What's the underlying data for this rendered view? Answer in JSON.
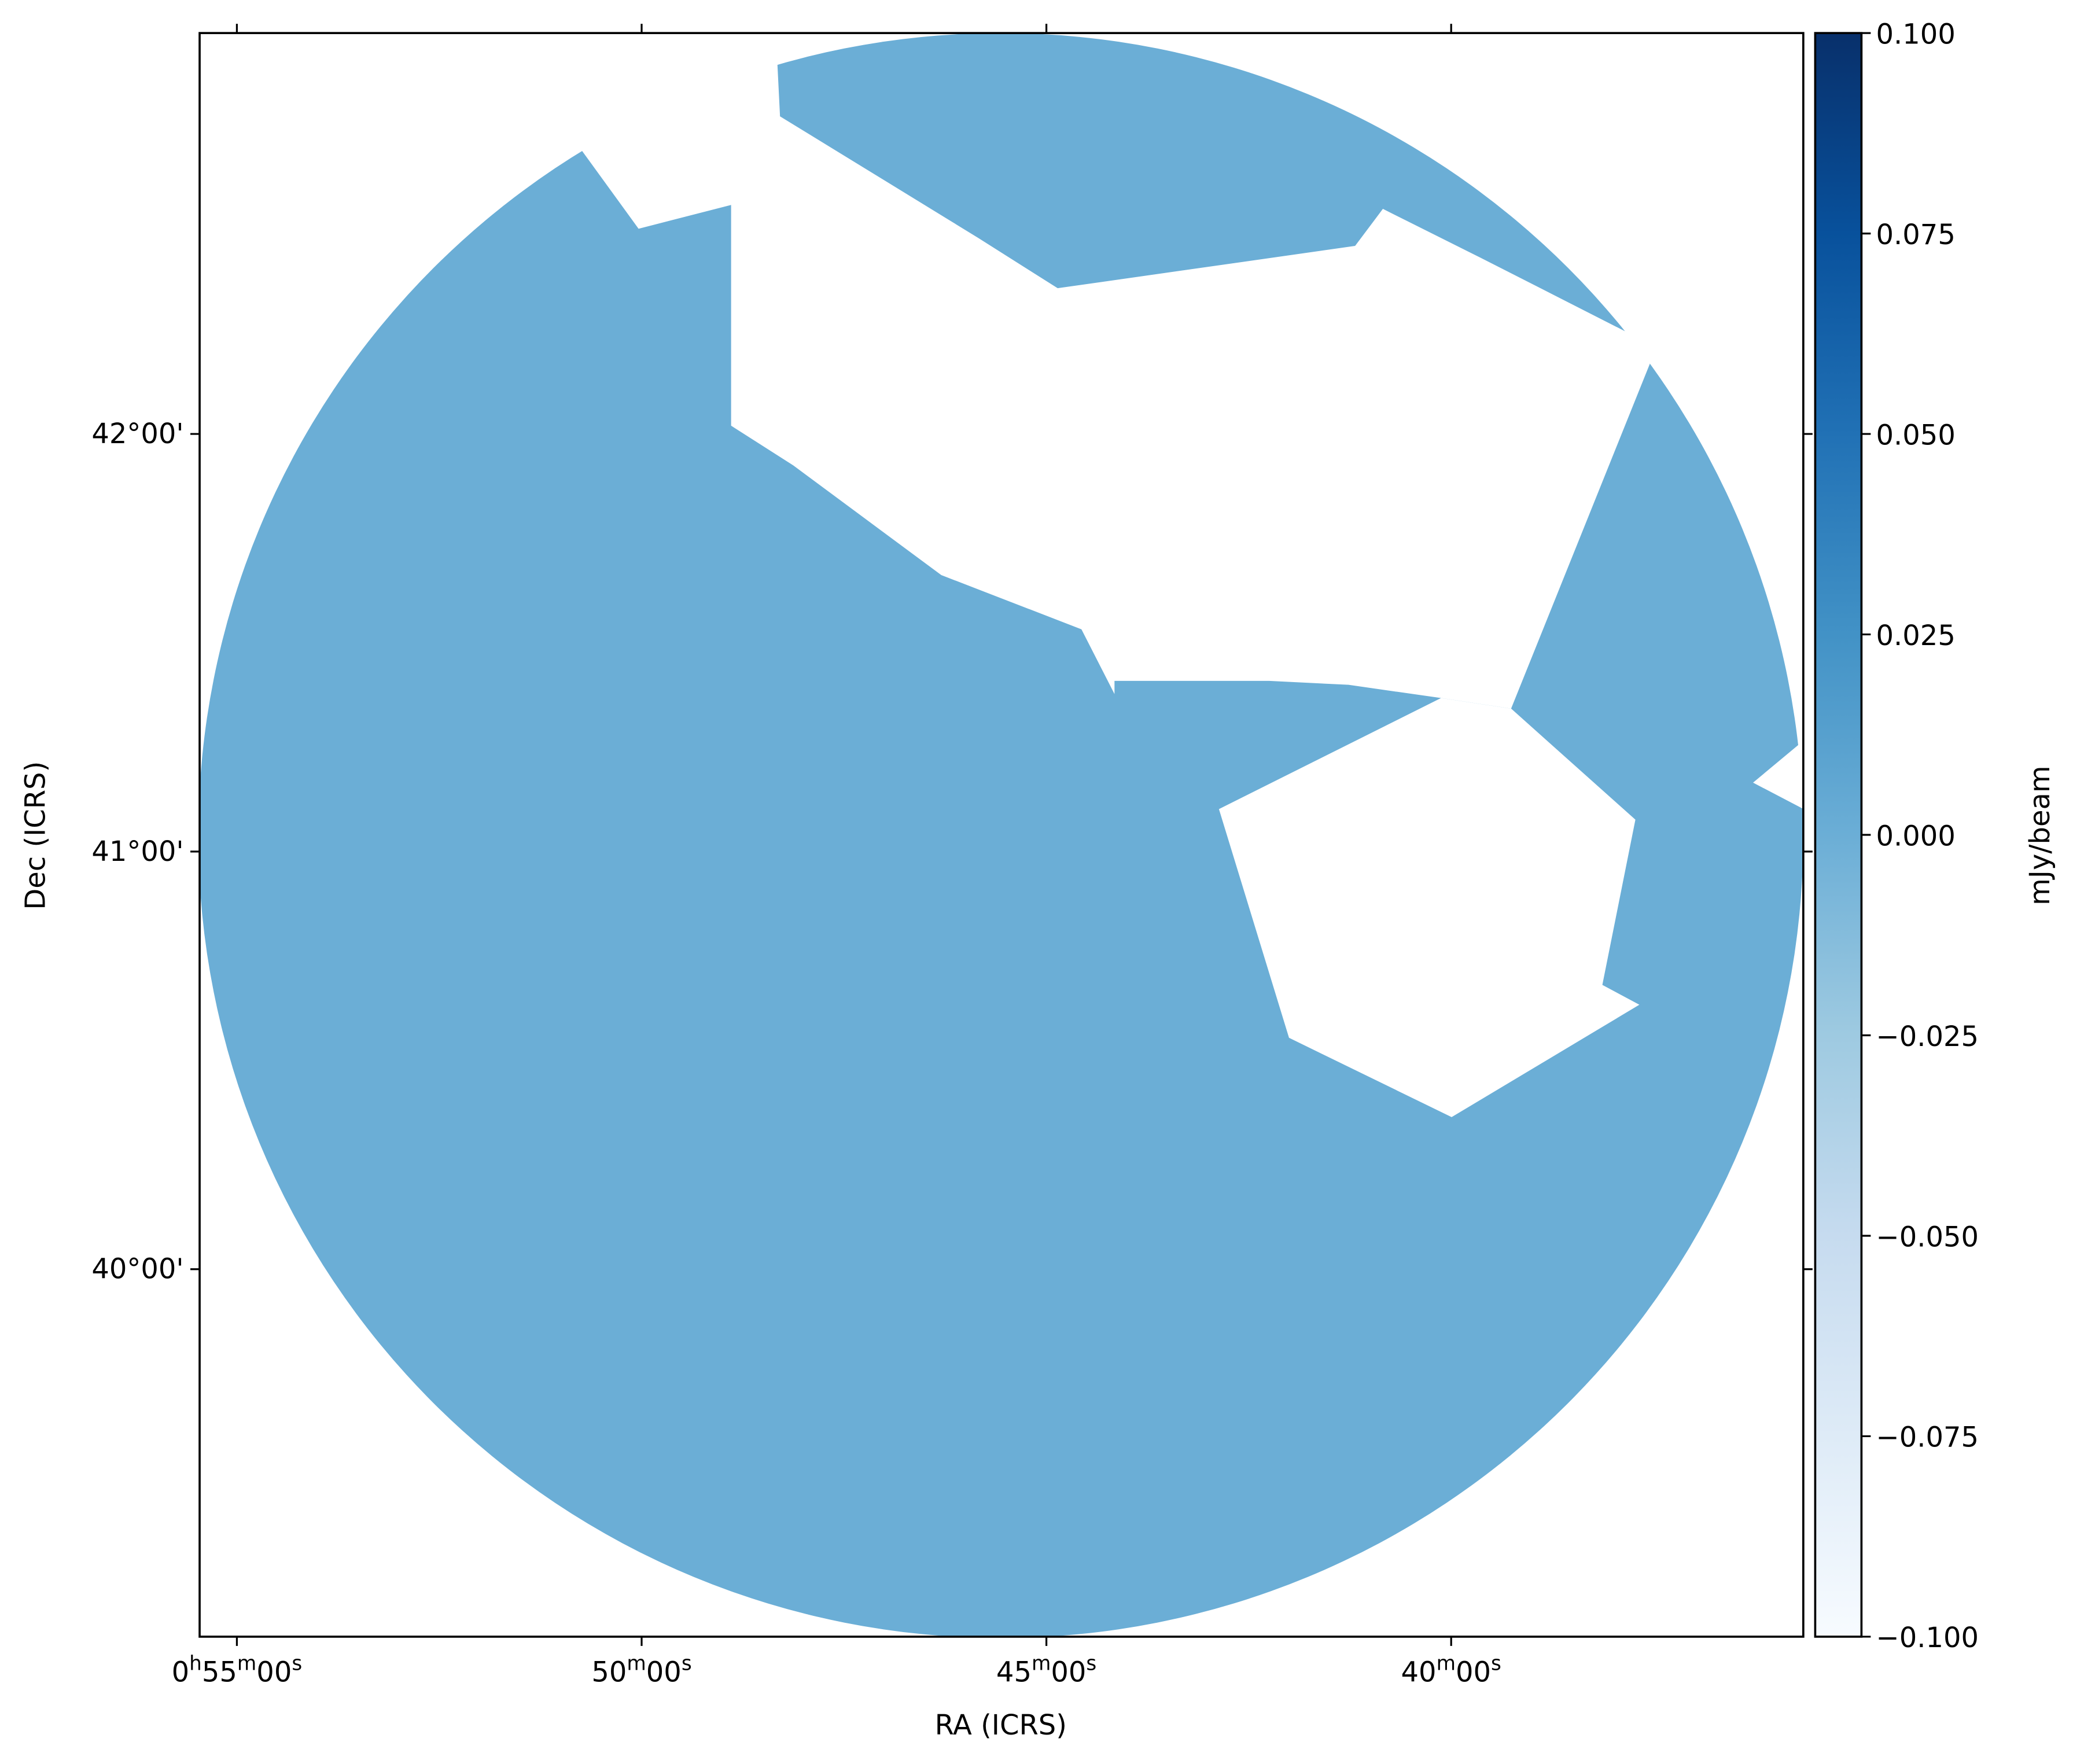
{
  "chart_data": {
    "type": "image",
    "x_label": "RA (ICRS)",
    "y_label": "Dec (ICRS)",
    "xlim": [
      55.46,
      35.65
    ],
    "ylim": [
      39.12,
      42.96
    ],
    "xticks": [
      {
        "value": 55,
        "label": "0h55m00s"
      },
      {
        "value": 50,
        "label": "50m00s"
      },
      {
        "value": 45,
        "label": "45m00s"
      },
      {
        "value": 40,
        "label": "40m00s"
      }
    ],
    "yticks": [
      {
        "value": 40,
        "label": "40°00'"
      },
      {
        "value": 41,
        "label": "41°00'"
      },
      {
        "value": 42,
        "label": "42°00'"
      }
    ],
    "colorbar": {
      "label": "mJy/beam",
      "clim": [
        -0.1,
        0.1
      ],
      "colormap": [
        "#f7fbff",
        "#deebf7",
        "#c6dbef",
        "#9ecae1",
        "#6baed6",
        "#4292c6",
        "#2171b5",
        "#08519c",
        "#08306b"
      ],
      "ticks": [
        {
          "value": -0.1,
          "label": "−0.100"
        },
        {
          "value": -0.075,
          "label": "−0.075"
        },
        {
          "value": -0.05,
          "label": "−0.050"
        },
        {
          "value": -0.025,
          "label": "−0.025"
        },
        {
          "value": 0,
          "label": "0.000"
        },
        {
          "value": 0.025,
          "label": "0.025"
        },
        {
          "value": 0.05,
          "label": "0.050"
        },
        {
          "value": 0.075,
          "label": "0.075"
        },
        {
          "value": 0.1,
          "label": "0.100"
        }
      ]
    }
  }
}
